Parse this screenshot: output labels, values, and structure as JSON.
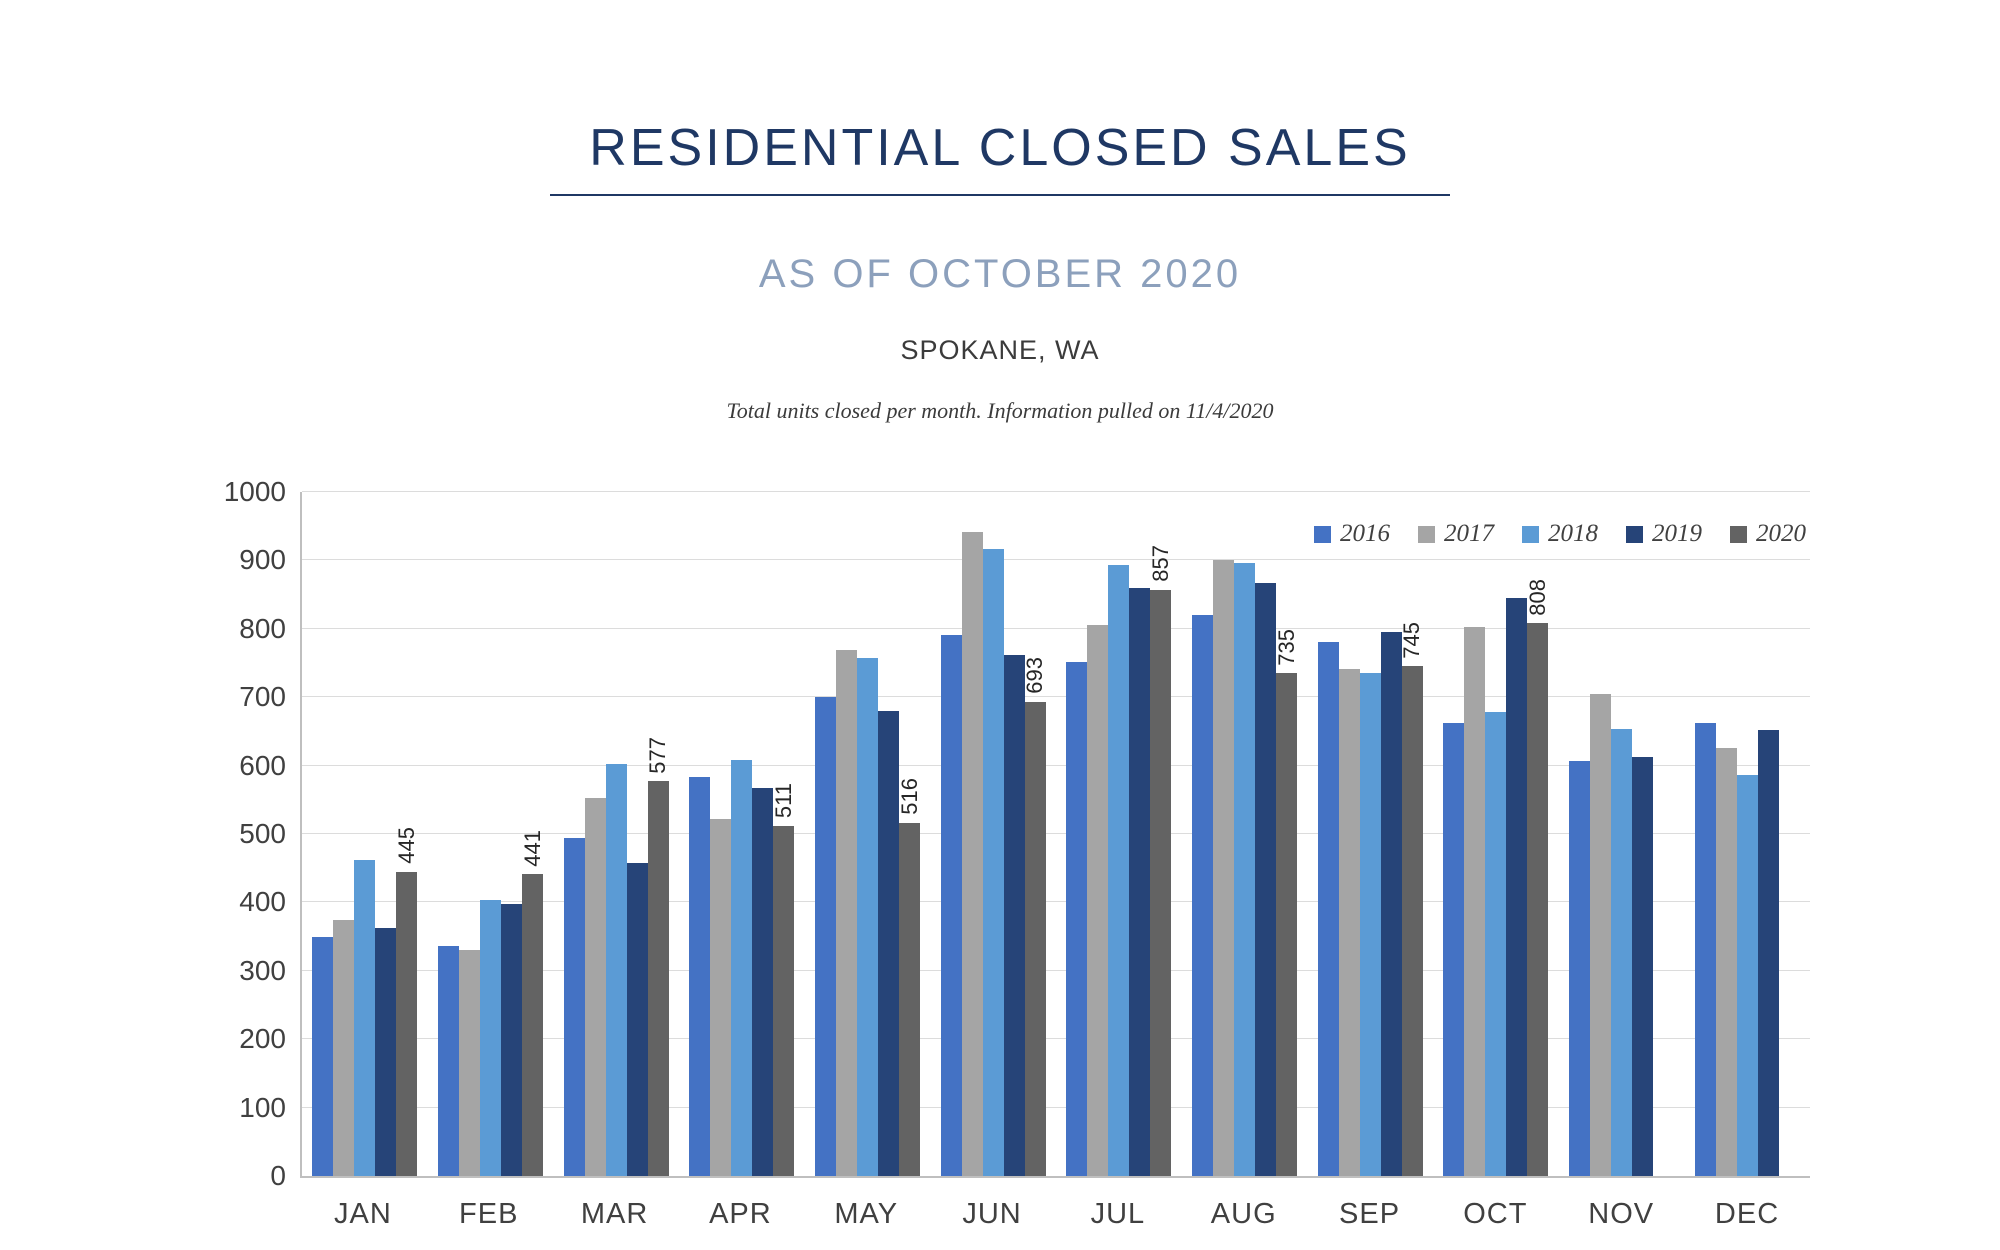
{
  "header": {
    "title": "RESIDENTIAL CLOSED SALES",
    "subtitle": "AS OF OCTOBER 2020",
    "location": "SPOKANE, WA",
    "caption": "Total units closed per month.  Information pulled on 11/4/2020"
  },
  "chart_data": {
    "type": "bar",
    "title": "RESIDENTIAL CLOSED SALES",
    "xlabel": "",
    "ylabel": "",
    "ylim": [
      0,
      1000
    ],
    "ytick_step": 100,
    "grid": true,
    "legend_position": "top-right",
    "categories": [
      "JAN",
      "FEB",
      "MAR",
      "APR",
      "MAY",
      "JUN",
      "JUL",
      "AUG",
      "SEP",
      "OCT",
      "NOV",
      "DEC"
    ],
    "series": [
      {
        "name": "2016",
        "color": "#4472C4",
        "values": [
          350,
          337,
          494,
          583,
          701,
          791,
          751,
          820,
          780,
          662,
          607,
          662
        ]
      },
      {
        "name": "2017",
        "color": "#A5A5A5",
        "values": [
          375,
          331,
          553,
          522,
          769,
          941,
          805,
          901,
          741,
          802,
          705,
          626
        ]
      },
      {
        "name": "2018",
        "color": "#5B9BD5",
        "values": [
          462,
          403,
          602,
          608,
          758,
          916,
          894,
          896,
          736,
          678,
          654,
          586
        ]
      },
      {
        "name": "2019",
        "color": "#264478",
        "values": [
          362,
          397,
          457,
          567,
          680,
          762,
          860,
          867,
          796,
          845,
          612,
          652
        ]
      },
      {
        "name": "2020",
        "color": "#636363",
        "values": [
          445,
          441,
          577,
          511,
          516,
          693,
          857,
          735,
          745,
          808,
          null,
          null
        ]
      }
    ],
    "data_labels": {
      "series": "2020",
      "values": [
        445,
        441,
        577,
        511,
        516,
        693,
        857,
        735,
        745,
        808,
        null,
        null
      ]
    }
  }
}
